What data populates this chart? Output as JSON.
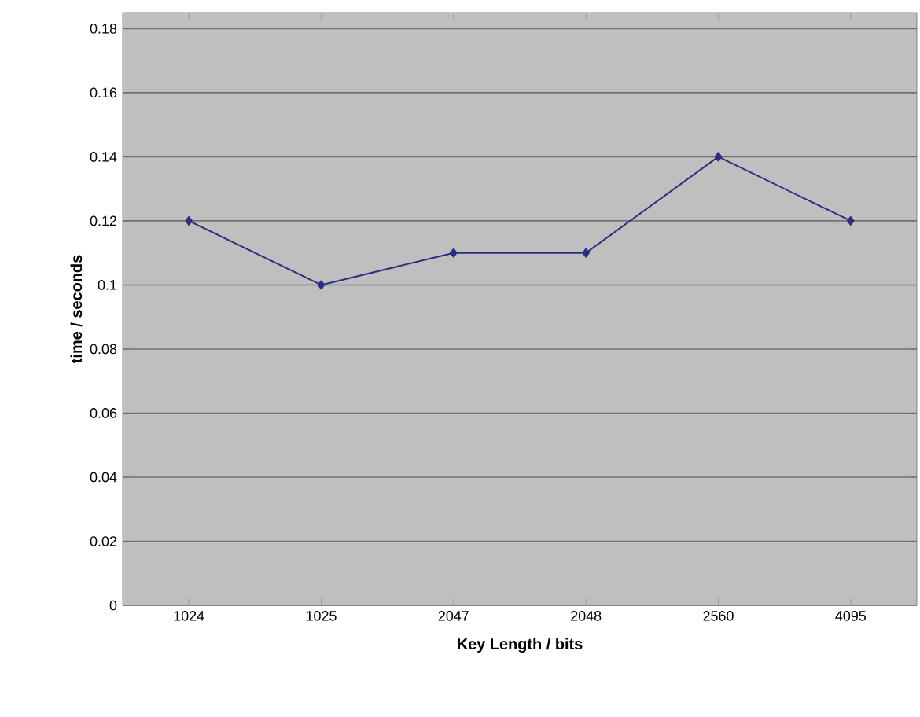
{
  "chart_data": {
    "type": "line",
    "xlabel": "Key Length / bits",
    "ylabel": "time / seconds",
    "categories": [
      "1024",
      "1025",
      "2047",
      "2048",
      "2560",
      "4095"
    ],
    "values": [
      0.12,
      0.1,
      0.11,
      0.11,
      0.14,
      0.12
    ],
    "color": "#2e2e80",
    "ylim": [
      0,
      0.185
    ],
    "yticks": [
      0,
      0.02,
      0.04,
      0.06,
      0.08,
      0.1,
      0.12,
      0.14,
      0.16,
      0.18
    ],
    "grid": "y",
    "marker": "diamond",
    "line_style": "solid"
  }
}
